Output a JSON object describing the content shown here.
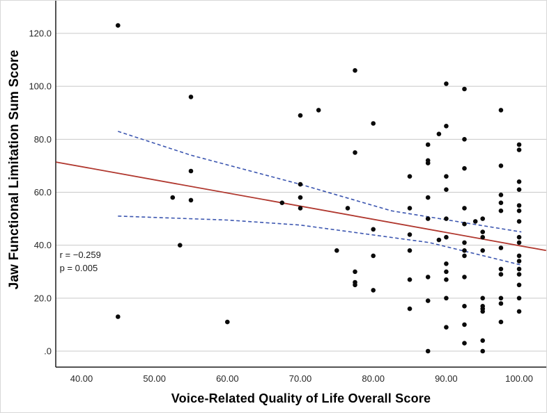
{
  "figure": {
    "background": "#ffffff"
  },
  "chart_data": {
    "type": "scatter",
    "title": "",
    "xlabel": "Voice-Related Quality of Life Overall Score",
    "ylabel": "Jaw Functional Limitation Sum Score",
    "xlim": [
      36.5,
      103.7
    ],
    "ylim": [
      -6,
      132
    ],
    "grid": "horizontal",
    "legend": "none",
    "x_ticks": [
      40,
      50,
      60,
      70,
      80,
      90,
      100
    ],
    "x_tick_labels": [
      "40.00",
      "50.00",
      "60.00",
      "70.00",
      "80.00",
      "90.00",
      "100.00"
    ],
    "y_ticks": [
      0,
      20,
      40,
      60,
      80,
      100,
      120
    ],
    "y_tick_labels": [
      ".0",
      "20.0",
      "40.0",
      "60.0",
      "80.0",
      "100.0",
      "120.0"
    ],
    "points": [
      [
        45,
        123
      ],
      [
        45,
        13
      ],
      [
        52.5,
        58
      ],
      [
        53.5,
        40
      ],
      [
        55,
        96
      ],
      [
        55,
        68
      ],
      [
        55,
        57
      ],
      [
        60,
        11
      ],
      [
        67.5,
        56
      ],
      [
        70,
        89
      ],
      [
        70,
        63
      ],
      [
        70,
        58
      ],
      [
        70,
        54
      ],
      [
        72.5,
        91
      ],
      [
        75,
        38
      ],
      [
        76.5,
        54
      ],
      [
        77.5,
        106
      ],
      [
        77.5,
        75
      ],
      [
        77.5,
        30
      ],
      [
        77.5,
        26
      ],
      [
        77.5,
        25
      ],
      [
        80,
        86
      ],
      [
        80,
        46
      ],
      [
        80,
        36
      ],
      [
        80,
        23
      ],
      [
        85,
        66
      ],
      [
        85,
        54
      ],
      [
        85,
        44
      ],
      [
        85,
        38
      ],
      [
        85,
        27
      ],
      [
        85,
        16
      ],
      [
        87.5,
        78
      ],
      [
        87.5,
        72
      ],
      [
        87.5,
        71
      ],
      [
        87.5,
        58
      ],
      [
        87.5,
        50
      ],
      [
        87.5,
        28
      ],
      [
        87.5,
        19
      ],
      [
        87.5,
        0
      ],
      [
        89,
        82
      ],
      [
        89,
        42
      ],
      [
        90,
        101
      ],
      [
        90,
        85
      ],
      [
        90,
        66
      ],
      [
        90,
        61
      ],
      [
        90,
        50
      ],
      [
        90,
        43
      ],
      [
        90,
        33
      ],
      [
        90,
        30
      ],
      [
        90,
        27
      ],
      [
        90,
        20
      ],
      [
        90,
        9
      ],
      [
        92.5,
        99
      ],
      [
        92.5,
        80
      ],
      [
        92.5,
        69
      ],
      [
        92.5,
        54
      ],
      [
        92.5,
        48
      ],
      [
        92.5,
        41
      ],
      [
        92.5,
        38
      ],
      [
        92.5,
        36
      ],
      [
        92.5,
        28
      ],
      [
        92.5,
        17
      ],
      [
        92.5,
        10
      ],
      [
        92.5,
        3
      ],
      [
        94,
        49
      ],
      [
        95,
        50
      ],
      [
        95,
        45
      ],
      [
        95,
        43
      ],
      [
        95,
        38
      ],
      [
        95,
        20
      ],
      [
        95,
        17
      ],
      [
        95,
        16
      ],
      [
        95,
        15
      ],
      [
        95,
        4
      ],
      [
        95,
        0
      ],
      [
        97.5,
        91
      ],
      [
        97.5,
        70
      ],
      [
        97.5,
        59
      ],
      [
        97.5,
        56
      ],
      [
        97.5,
        53
      ],
      [
        97.5,
        39
      ],
      [
        97.5,
        31
      ],
      [
        97.5,
        29
      ],
      [
        97.5,
        20
      ],
      [
        97.5,
        18
      ],
      [
        97.5,
        11
      ],
      [
        100,
        78
      ],
      [
        100,
        76
      ],
      [
        100,
        64
      ],
      [
        100,
        61
      ],
      [
        100,
        55
      ],
      [
        100,
        53
      ],
      [
        100,
        49
      ],
      [
        100,
        43
      ],
      [
        100,
        41
      ],
      [
        100,
        36
      ],
      [
        100,
        34
      ],
      [
        100,
        31
      ],
      [
        100,
        29
      ],
      [
        100,
        25
      ],
      [
        100,
        20
      ],
      [
        100,
        15
      ]
    ],
    "fit_line": {
      "x1": 36.5,
      "y1": 71.4,
      "x2": 103.7,
      "y2": 38.0
    },
    "ci_upper": [
      [
        45,
        83
      ],
      [
        55,
        74
      ],
      [
        70,
        63
      ],
      [
        82.5,
        53
      ],
      [
        92.5,
        48.5
      ],
      [
        100.3,
        45
      ]
    ],
    "ci_lower": [
      [
        45,
        51
      ],
      [
        60,
        49.5
      ],
      [
        70,
        47.6
      ],
      [
        87.7,
        41
      ],
      [
        100.3,
        32.5
      ]
    ],
    "annotation": {
      "lines": [
        "r = −0.259",
        "p = 0.005"
      ],
      "x": 37,
      "y": 35.2
    },
    "colors": {
      "point": "#0a0a0a",
      "fit_line": "#b0372e",
      "ci_band": "#3c56b0",
      "grid": "#c8c8c8",
      "axis": "#1a1a1a",
      "tick_label": "#262626",
      "annotation": "#1a1a1a"
    }
  }
}
